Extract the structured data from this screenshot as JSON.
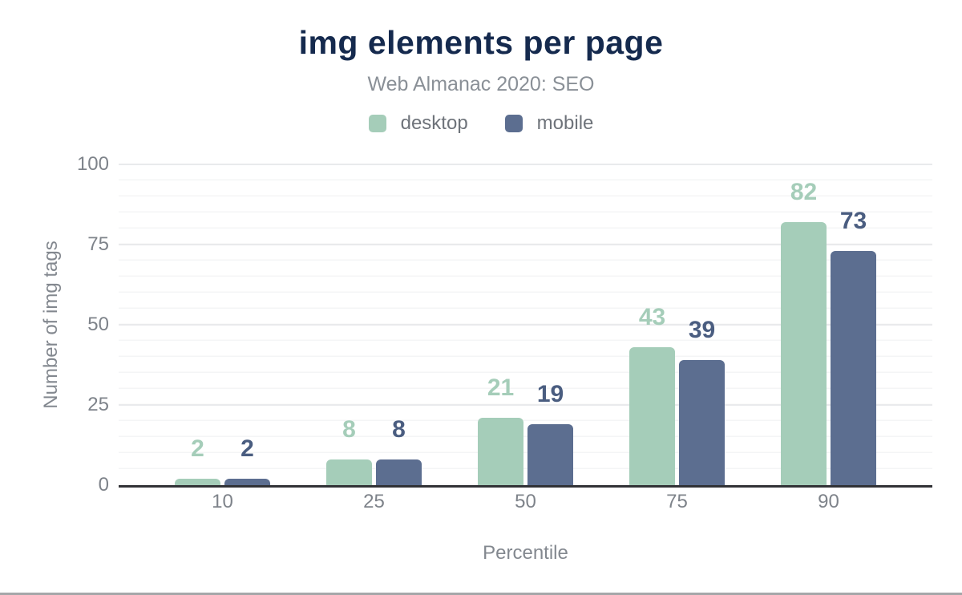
{
  "chart_data": {
    "type": "bar",
    "title": "img elements per page",
    "subtitle": "Web Almanac 2020: SEO",
    "categories": [
      "10",
      "25",
      "50",
      "75",
      "90"
    ],
    "series": [
      {
        "name": "desktop",
        "color": "#a5cdb9",
        "label_color": "#a5cdb9",
        "values": [
          2,
          8,
          21,
          43,
          82
        ]
      },
      {
        "name": "mobile",
        "color": "#5c6e90",
        "label_color": "#4a5d80",
        "values": [
          2,
          8,
          19,
          39,
          73
        ]
      }
    ],
    "xlabel": "Percentile",
    "ylabel": "Number of img tags",
    "ylim": [
      0,
      100
    ],
    "yticks": [
      0,
      25,
      50,
      75,
      100
    ],
    "minor_tick_step": 5,
    "grid": true,
    "legend_position": "top",
    "data_labels": true
  },
  "style": {
    "title_color": "#152a4e",
    "subtitle_color": "#8a9097",
    "legend_text_color": "#6e737a",
    "axis_text_color": "#7e838a",
    "axis_title_color": "#83888f",
    "axis_line_color": "#313236",
    "major_grid_color": "#e9eaec",
    "minor_grid_color": "#f4f5f6",
    "divider_color": "#a5a7a9"
  }
}
